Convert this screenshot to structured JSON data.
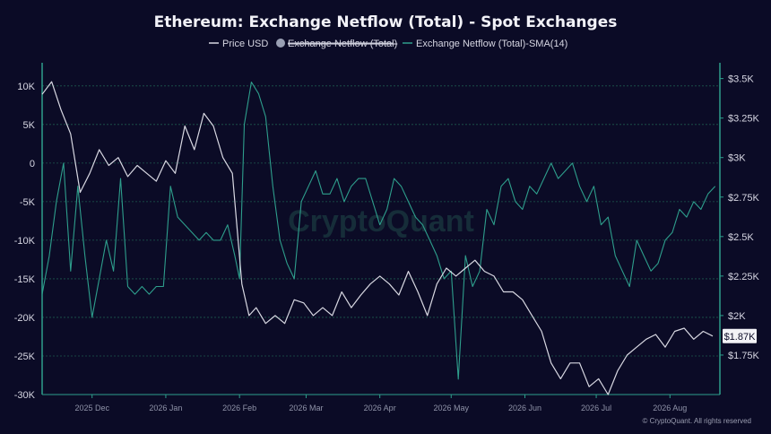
{
  "chart_data": {
    "type": "line",
    "title": "Ethereum: Exchange Netflow (Total) - Spot Exchanges",
    "legend": {
      "placement": "top-center",
      "items": [
        {
          "label": "Price USD",
          "color": "#d8d8e2",
          "style": "line",
          "hidden": false
        },
        {
          "label": "Exchange Netflow (Total)",
          "color": "#9aa0b4",
          "style": "dot",
          "hidden": true
        },
        {
          "label": "Exchange Netflow (Total)-SMA(14)",
          "color": "#2e9e8c",
          "style": "line",
          "hidden": false
        }
      ]
    },
    "y_left": {
      "range": [
        -30000,
        13000
      ],
      "ticks": [
        10000,
        5000,
        0,
        -5000,
        -10000,
        -15000,
        -20000,
        -25000,
        -30000
      ],
      "tick_labels": [
        "10K",
        "5K",
        "0",
        "-5K",
        "-10K",
        "-15K",
        "-20K",
        "-25K",
        "-30K"
      ]
    },
    "y_right": {
      "range": [
        1500,
        3600
      ],
      "ticks": [
        3500,
        3250,
        3000,
        2750,
        2500,
        2250,
        2000,
        1750
      ],
      "tick_labels": [
        "$3.5K",
        "$3.25K",
        "$3K",
        "$2.75K",
        "$2.5K",
        "$2.25K",
        "$2K",
        "$1.75K"
      ]
    },
    "x_axis": {
      "range": [
        "2025-11-10",
        "2026-08-22"
      ],
      "ticks": [
        "2025-12-01",
        "2026-01-01",
        "2026-02-01",
        "2026-03-01",
        "2026-04-01",
        "2026-05-01",
        "2026-06-01",
        "2026-07-01",
        "2026-08-01"
      ],
      "tick_labels": [
        "2025 Dec",
        "2026 Jan",
        "2026 Feb",
        "2026 Mar",
        "2026 Apr",
        "2026 May",
        "2026 Jun",
        "2026 Jul",
        "2026 Aug"
      ]
    },
    "grid": {
      "horizontal": true,
      "vertical": false
    },
    "current_price_label": "$1.87K",
    "series": [
      {
        "name": "Price USD",
        "axis": "right",
        "color": "#d8d8e2",
        "x": [
          "2025-11-10",
          "2025-11-14",
          "2025-11-18",
          "2025-11-22",
          "2025-11-26",
          "2025-11-30",
          "2025-12-04",
          "2025-12-08",
          "2025-12-12",
          "2025-12-16",
          "2025-12-20",
          "2025-12-24",
          "2025-12-28",
          "2026-01-01",
          "2026-01-05",
          "2026-01-09",
          "2026-01-13",
          "2026-01-17",
          "2026-01-21",
          "2026-01-25",
          "2026-01-29",
          "2026-02-02",
          "2026-02-05",
          "2026-02-08",
          "2026-02-12",
          "2026-02-16",
          "2026-02-20",
          "2026-02-24",
          "2026-02-28",
          "2026-03-04",
          "2026-03-08",
          "2026-03-12",
          "2026-03-16",
          "2026-03-20",
          "2026-03-24",
          "2026-03-28",
          "2026-04-01",
          "2026-04-05",
          "2026-04-09",
          "2026-04-13",
          "2026-04-17",
          "2026-04-21",
          "2026-04-25",
          "2026-04-29",
          "2026-05-03",
          "2026-05-07",
          "2026-05-11",
          "2026-05-15",
          "2026-05-19",
          "2026-05-23",
          "2026-05-27",
          "2026-05-31",
          "2026-06-04",
          "2026-06-08",
          "2026-06-12",
          "2026-06-16",
          "2026-06-20",
          "2026-06-24",
          "2026-06-28",
          "2026-07-02",
          "2026-07-06",
          "2026-07-10",
          "2026-07-14",
          "2026-07-18",
          "2026-07-22",
          "2026-07-26",
          "2026-07-30",
          "2026-08-03",
          "2026-08-07",
          "2026-08-11",
          "2026-08-15",
          "2026-08-19"
        ],
        "values": [
          3400,
          3480,
          3300,
          3150,
          2780,
          2900,
          3050,
          2950,
          3000,
          2880,
          2950,
          2900,
          2850,
          2980,
          2900,
          3200,
          3050,
          3280,
          3200,
          3000,
          2900,
          2200,
          2000,
          2050,
          1950,
          2000,
          1950,
          2100,
          2080,
          2000,
          2050,
          2000,
          2150,
          2050,
          2130,
          2200,
          2250,
          2200,
          2130,
          2280,
          2150,
          2000,
          2200,
          2300,
          2250,
          2300,
          2350,
          2280,
          2250,
          2150,
          2150,
          2100,
          2000,
          1900,
          1700,
          1600,
          1700,
          1700,
          1550,
          1600,
          1500,
          1650,
          1750,
          1800,
          1850,
          1880,
          1800,
          1900,
          1920,
          1850,
          1900,
          1870
        ]
      },
      {
        "name": "Exchange Netflow (Total)-SMA(14)",
        "axis": "left",
        "color": "#2e9e8c",
        "x": [
          "2025-11-10",
          "2025-11-13",
          "2025-11-16",
          "2025-11-19",
          "2025-11-22",
          "2025-11-25",
          "2025-11-28",
          "2025-12-01",
          "2025-12-04",
          "2025-12-07",
          "2025-12-10",
          "2025-12-13",
          "2025-12-16",
          "2025-12-19",
          "2025-12-22",
          "2025-12-25",
          "2025-12-28",
          "2025-12-31",
          "2026-01-03",
          "2026-01-06",
          "2026-01-09",
          "2026-01-12",
          "2026-01-15",
          "2026-01-18",
          "2026-01-21",
          "2026-01-24",
          "2026-01-27",
          "2026-01-30",
          "2026-02-01",
          "2026-02-03",
          "2026-02-06",
          "2026-02-09",
          "2026-02-12",
          "2026-02-15",
          "2026-02-18",
          "2026-02-21",
          "2026-02-24",
          "2026-02-27",
          "2026-03-02",
          "2026-03-05",
          "2026-03-08",
          "2026-03-11",
          "2026-03-14",
          "2026-03-17",
          "2026-03-20",
          "2026-03-23",
          "2026-03-26",
          "2026-03-29",
          "2026-04-01",
          "2026-04-04",
          "2026-04-07",
          "2026-04-10",
          "2026-04-13",
          "2026-04-16",
          "2026-04-19",
          "2026-04-22",
          "2026-04-25",
          "2026-04-28",
          "2026-05-01",
          "2026-05-04",
          "2026-05-07",
          "2026-05-10",
          "2026-05-13",
          "2026-05-16",
          "2026-05-19",
          "2026-05-22",
          "2026-05-25",
          "2026-05-28",
          "2026-05-31",
          "2026-06-03",
          "2026-06-06",
          "2026-06-09",
          "2026-06-12",
          "2026-06-15",
          "2026-06-18",
          "2026-06-21",
          "2026-06-24",
          "2026-06-27",
          "2026-06-30",
          "2026-07-03",
          "2026-07-06",
          "2026-07-09",
          "2026-07-12",
          "2026-07-15",
          "2026-07-18",
          "2026-07-21",
          "2026-07-24",
          "2026-07-27",
          "2026-07-30",
          "2026-08-02",
          "2026-08-05",
          "2026-08-08",
          "2026-08-11",
          "2026-08-14",
          "2026-08-17",
          "2026-08-20"
        ],
        "values": [
          -17000,
          -12000,
          -5000,
          0,
          -14000,
          -3000,
          -12000,
          -20000,
          -15000,
          -10000,
          -14000,
          -2000,
          -16000,
          -17000,
          -16000,
          -17000,
          -16000,
          -16000,
          -3000,
          -7000,
          -8000,
          -9000,
          -10000,
          -9000,
          -10000,
          -10000,
          -8000,
          -12000,
          -15000,
          5000,
          10500,
          9000,
          6000,
          -3000,
          -10000,
          -13000,
          -15000,
          -5000,
          -3000,
          -1000,
          -4000,
          -4000,
          -2000,
          -5000,
          -3000,
          -2000,
          -2000,
          -5000,
          -8000,
          -6000,
          -2000,
          -3000,
          -5000,
          -7000,
          -8000,
          -10000,
          -12000,
          -15000,
          -14000,
          -28000,
          -12000,
          -16000,
          -14000,
          -6000,
          -8000,
          -3000,
          -2000,
          -5000,
          -6000,
          -3000,
          -4000,
          -2000,
          0,
          -2000,
          -1000,
          0,
          -3000,
          -5000,
          -3000,
          -8000,
          -7000,
          -12000,
          -14000,
          -16000,
          -10000,
          -12000,
          -14000,
          -13000,
          -10000,
          -9000,
          -6000,
          -7000,
          -5000,
          -6000,
          -4000,
          -3000
        ]
      }
    ]
  },
  "watermark": "CryptoQuant",
  "copyright": "© CryptoQuant. All rights reserved"
}
